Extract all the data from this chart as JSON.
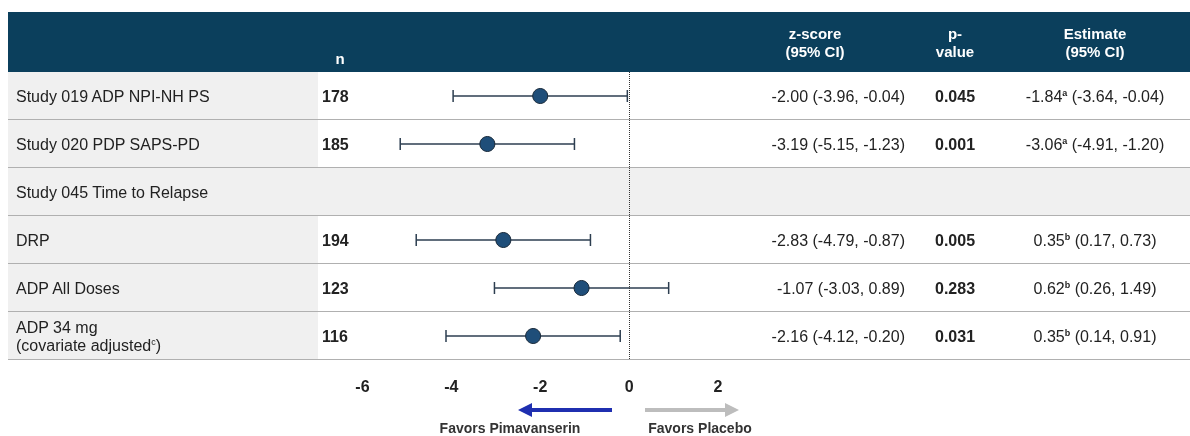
{
  "chart_data": {
    "type": "scatter",
    "orientation": "horizontal",
    "categories": [
      "Study 019 ADP NPI-NH PS",
      "Study 020 PDP SAPS-PD",
      "Study 045 Time to Relapse",
      "DRP",
      "ADP All Doses",
      "ADP 34 mg\n(covariate adjusted$^{c}$)"
    ],
    "values": [
      -2.0,
      -3.19,
      null,
      -2.83,
      -1.07,
      -2.16
    ],
    "errors": [
      [
        -3.96,
        -0.04
      ],
      [
        -5.15,
        -1.23
      ],
      null,
      [
        -4.79,
        -0.87
      ],
      [
        -3.03,
        0.89
      ],
      [
        -4.12,
        -0.2
      ]
    ],
    "color": "#1f4e79",
    "marker": "circle",
    "xlim": [
      -13.975,
      12.62
    ],
    "xticks": [
      -6,
      -4,
      -2,
      0,
      2
    ],
    "grid": false,
    "legend": false,
    "ref_lines": [
      {
        "axis": "x",
        "value": 0,
        "line_style": "dotted",
        "color": "#333333"
      }
    ],
    "annotations": [
      "n",
      "z-score\n(95% CI)",
      "p-\nvalue",
      "Estimate\n(95% CI)",
      "178",
      "185",
      "194",
      "123",
      "116",
      "-2.00 (-3.96, -0.04)",
      "-3.19 (-5.15, -1.23)",
      "-2.83 (-4.79, -0.87)",
      "-1.07 (-3.03, 0.89)",
      "-2.16 (-4.12, -0.20)",
      "0.045",
      "0.001",
      "0.005",
      "0.283",
      "0.031",
      "-1.84$^{a}$ (-3.64, -0.04)",
      "-3.06$^{a}$ (-4.91, -1.20)",
      "0.35$^{b}$ (0.17, 0.73)",
      "0.62$^{b}$ (0.26, 1.49)",
      "0.35$^{b}$ (0.14, 0.91)",
      "Favors Pimavanserin",
      "Favors Placebo"
    ]
  }
}
